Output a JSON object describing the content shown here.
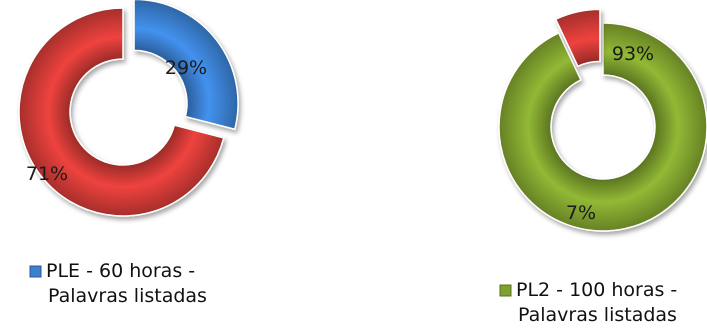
{
  "chart_data": [
    {
      "type": "pie",
      "subtype": "doughnut",
      "legend_position": "bottom",
      "legend": [
        "PLE - 60 horas -",
        "Palavras listadas"
      ],
      "slices": [
        {
          "value": 29,
          "label": "29%",
          "color": "#3a7fd0"
        },
        {
          "value": 71,
          "label": "71%",
          "color": "#d03a36"
        }
      ]
    },
    {
      "type": "pie",
      "subtype": "doughnut",
      "legend_position": "bottom",
      "legend": [
        "PL2 - 100 horas -",
        "Palavras listadas"
      ],
      "slices": [
        {
          "value": 93,
          "label": "93%",
          "color": "#7fa12e"
        },
        {
          "value": 7,
          "label": "7%",
          "color": "#d03a36"
        }
      ]
    }
  ]
}
